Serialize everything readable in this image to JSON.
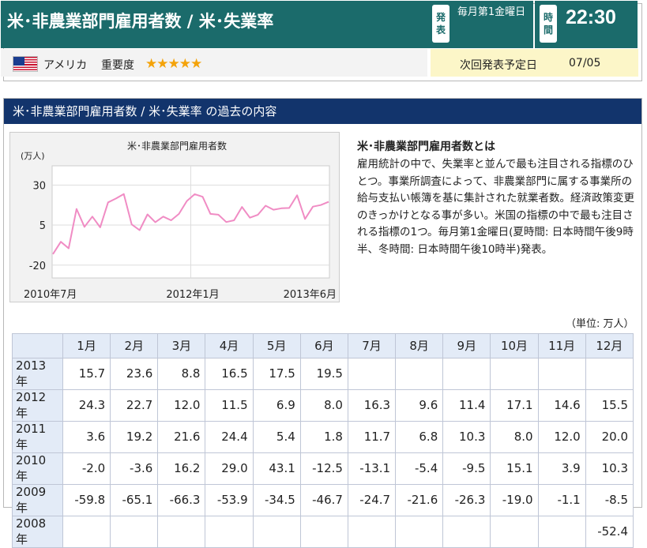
{
  "header": {
    "title": "米･非農業部門雇用者数 / 米･失業率",
    "release_badge": "発表",
    "schedule": "毎月第1金曜日",
    "time_badge": "時間",
    "time": "22:30",
    "country": "アメリカ",
    "importance_label": "重要度",
    "importance_stars": 5,
    "stars_text": "★★★★★",
    "next_label": "次回発表予定日",
    "next_date": "07/05"
  },
  "section": {
    "title": "米･非農業部門雇用者数 / 米･失業率 の過去の内容",
    "description_title": "米･非農業部門雇用者数とは",
    "description": "雇用統計の中で、失業率と並んで最も注目される指標のひとつ。事業所調査によって、非農業部門に属する事業所の給与支払い帳簿を基に集計された就業者数。経済政策変更のきっかけとなる事が多い。米国の指標の中で最も注目される指標の1つ。毎月第1金曜日(夏時間: 日本時間午後9時半、冬時間: 日本時間午後10時半)発表。",
    "unit": "（単位: 万人）"
  },
  "chart_data": {
    "type": "line",
    "title": "米･非農業部門雇用者数",
    "ylabel": "(万人)",
    "yticks": [
      30,
      5,
      -20
    ],
    "ylim": [
      -28,
      42
    ],
    "xticks": [
      "2010年7月",
      "2012年1月",
      "2013年6月"
    ],
    "line_color": "#f08cc4",
    "grid": true,
    "series": [
      {
        "values": [
          -13.1,
          -5.4,
          -9.5,
          15.1,
          3.9,
          10.3,
          3.6,
          19.2,
          21.6,
          24.4,
          5.4,
          1.8,
          11.7,
          6.8,
          10.3,
          8.0,
          12.0,
          20.0,
          24.3,
          22.7,
          12.0,
          11.5,
          6.9,
          8.0,
          16.3,
          9.6,
          11.4,
          17.1,
          14.6,
          15.5,
          15.7,
          23.6,
          8.8,
          16.5,
          17.5,
          19.5
        ]
      }
    ]
  },
  "table": {
    "months": [
      "1月",
      "2月",
      "3月",
      "4月",
      "5月",
      "6月",
      "7月",
      "8月",
      "9月",
      "10月",
      "11月",
      "12月"
    ],
    "rows": [
      {
        "year": "2013年",
        "values": [
          "15.7",
          "23.6",
          "8.8",
          "16.5",
          "17.5",
          "19.5",
          "",
          "",
          "",
          "",
          "",
          ""
        ]
      },
      {
        "year": "2012年",
        "values": [
          "24.3",
          "22.7",
          "12.0",
          "11.5",
          "6.9",
          "8.0",
          "16.3",
          "9.6",
          "11.4",
          "17.1",
          "14.6",
          "15.5"
        ]
      },
      {
        "year": "2011年",
        "values": [
          "3.6",
          "19.2",
          "21.6",
          "24.4",
          "5.4",
          "1.8",
          "11.7",
          "6.8",
          "10.3",
          "8.0",
          "12.0",
          "20.0"
        ]
      },
      {
        "year": "2010年",
        "values": [
          "-2.0",
          "-3.6",
          "16.2",
          "29.0",
          "43.1",
          "-12.5",
          "-13.1",
          "-5.4",
          "-9.5",
          "15.1",
          "3.9",
          "10.3"
        ]
      },
      {
        "year": "2009年",
        "values": [
          "-59.8",
          "-65.1",
          "-66.3",
          "-53.9",
          "-34.5",
          "-46.7",
          "-24.7",
          "-21.6",
          "-26.3",
          "-19.0",
          "-1.1",
          "-8.5"
        ]
      },
      {
        "year": "2008年",
        "values": [
          "",
          "",
          "",
          "",
          "",
          "",
          "",
          "",
          "",
          "",
          "",
          "-52.4"
        ]
      }
    ]
  }
}
